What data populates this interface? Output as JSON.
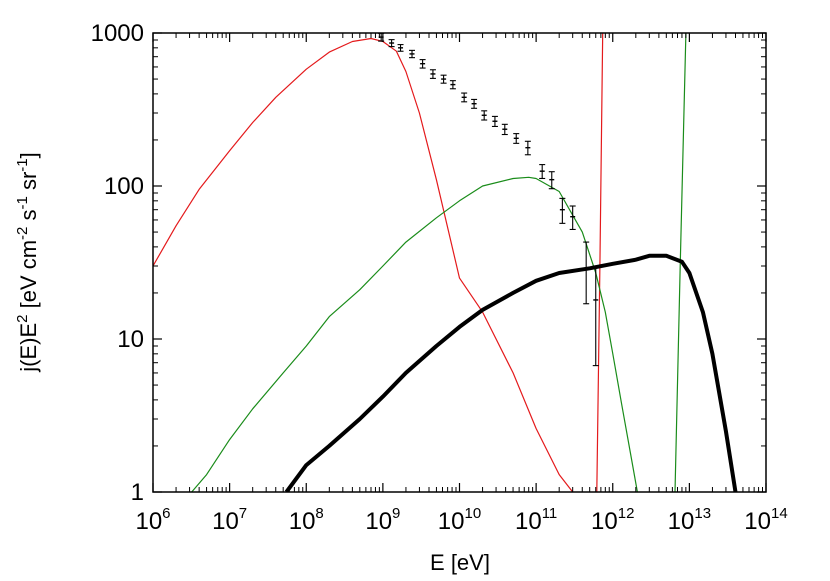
{
  "chart_data": {
    "type": "line",
    "xscale": "log",
    "yscale": "log",
    "xlim": [
      1000000.0,
      100000000000000.0
    ],
    "ylim": [
      1,
      1000
    ],
    "grid": false,
    "legend": "none",
    "xlabel": "E [eV]",
    "ylabel_parts": [
      "j(E)E",
      "2",
      " [eV cm",
      "-2",
      " s",
      "-1",
      " sr",
      "-1",
      "]"
    ],
    "x_ticks": [
      {
        "value": 1000000.0,
        "base": "10",
        "exp": "6"
      },
      {
        "value": 10000000.0,
        "base": "10",
        "exp": "7"
      },
      {
        "value": 100000000.0,
        "base": "10",
        "exp": "8"
      },
      {
        "value": 1000000000.0,
        "base": "10",
        "exp": "9"
      },
      {
        "value": 10000000000.0,
        "base": "10",
        "exp": "10"
      },
      {
        "value": 100000000000.0,
        "base": "10",
        "exp": "11"
      },
      {
        "value": 1000000000000.0,
        "base": "10",
        "exp": "12"
      },
      {
        "value": 10000000000000.0,
        "base": "10",
        "exp": "13"
      },
      {
        "value": 100000000000000.0,
        "base": "10",
        "exp": "14"
      }
    ],
    "y_ticks": [
      {
        "value": 1,
        "label": "1"
      },
      {
        "value": 10,
        "label": "10"
      },
      {
        "value": 100,
        "label": "100"
      },
      {
        "value": 1000,
        "label": "1000"
      }
    ],
    "series": [
      {
        "color": "#e41a1c",
        "width": 1.2,
        "points": [
          [
            1000000.0,
            30
          ],
          [
            2000000.0,
            55
          ],
          [
            4000000.0,
            95
          ],
          [
            10000000.0,
            170
          ],
          [
            20000000.0,
            260
          ],
          [
            40000000.0,
            380
          ],
          [
            100000000.0,
            580
          ],
          [
            200000000.0,
            750
          ],
          [
            400000000.0,
            880
          ],
          [
            700000000.0,
            920
          ],
          [
            1000000000.0,
            880
          ],
          [
            1500000000.0,
            760
          ],
          [
            2000000000.0,
            560
          ],
          [
            3000000000.0,
            300
          ],
          [
            5000000000.0,
            110
          ],
          [
            10000000000.0,
            25
          ],
          [
            20000000000.0,
            15
          ],
          [
            50000000000.0,
            6
          ],
          [
            100000000000.0,
            2.6
          ],
          [
            200000000000.0,
            1.3
          ],
          [
            300000000000.0,
            1
          ]
        ]
      },
      {
        "color": "#e41a1c",
        "width": 1.2,
        "points": [
          [
            620000000000.0,
            1
          ],
          [
            680000000000.0,
            30
          ],
          [
            740000000000.0,
            1000
          ]
        ]
      },
      {
        "color": "#1a8c1a",
        "width": 1.2,
        "points": [
          [
            3200000.0,
            1
          ],
          [
            5000000.0,
            1.3
          ],
          [
            10000000.0,
            2.2
          ],
          [
            20000000.0,
            3.5
          ],
          [
            50000000.0,
            6
          ],
          [
            100000000.0,
            9
          ],
          [
            200000000.0,
            14
          ],
          [
            500000000.0,
            21
          ],
          [
            1000000000.0,
            30
          ],
          [
            2000000000.0,
            43
          ],
          [
            5000000000.0,
            62
          ],
          [
            10000000000.0,
            80
          ],
          [
            20000000000.0,
            100
          ],
          [
            50000000000.0,
            112
          ],
          [
            80000000000.0,
            114
          ],
          [
            100000000000.0,
            112
          ],
          [
            200000000000.0,
            92
          ],
          [
            400000000000.0,
            50
          ],
          [
            600000000000.0,
            27
          ],
          [
            800000000000.0,
            15
          ],
          [
            1000000000000.0,
            8
          ],
          [
            1300000000000.0,
            3.8
          ],
          [
            1700000000000.0,
            1.8
          ],
          [
            2100000000000.0,
            1
          ]
        ]
      },
      {
        "color": "#1a8c1a",
        "width": 1.2,
        "points": [
          [
            6500000000000.0,
            1
          ],
          [
            7600000000000.0,
            30
          ],
          [
            9000000000000.0,
            1000
          ]
        ]
      },
      {
        "color": "#000000",
        "width": 4,
        "points": [
          [
            55000000.0,
            1
          ],
          [
            100000000.0,
            1.5
          ],
          [
            200000000.0,
            2
          ],
          [
            500000000.0,
            3
          ],
          [
            1000000000.0,
            4.2
          ],
          [
            2000000000.0,
            6
          ],
          [
            5000000000.0,
            9
          ],
          [
            10000000000.0,
            12
          ],
          [
            20000000000.0,
            15.5
          ],
          [
            50000000000.0,
            20
          ],
          [
            100000000000.0,
            24
          ],
          [
            200000000000.0,
            27
          ],
          [
            500000000000.0,
            29
          ],
          [
            1000000000000.0,
            31
          ],
          [
            2000000000000.0,
            33
          ],
          [
            3000000000000.0,
            35
          ],
          [
            5000000000000.0,
            35
          ],
          [
            8000000000000.0,
            32
          ],
          [
            10000000000000.0,
            27
          ],
          [
            15000000000000.0,
            15
          ],
          [
            20000000000000.0,
            8
          ],
          [
            30000000000000.0,
            2.5
          ],
          [
            40000000000000.0,
            1
          ]
        ]
      }
    ],
    "data_points": {
      "color": "#000000",
      "points": [
        {
          "x": 950000000.0,
          "y": 940,
          "lo": 885,
          "hi": 995
        },
        {
          "x": 1300000000.0,
          "y": 860,
          "lo": 815,
          "hi": 905
        },
        {
          "x": 1700000000.0,
          "y": 800,
          "lo": 760,
          "hi": 840
        },
        {
          "x": 2400000000.0,
          "y": 730,
          "lo": 690,
          "hi": 770
        },
        {
          "x": 3300000000.0,
          "y": 630,
          "lo": 590,
          "hi": 670
        },
        {
          "x": 4500000000.0,
          "y": 540,
          "lo": 505,
          "hi": 575
        },
        {
          "x": 6200000000.0,
          "y": 500,
          "lo": 470,
          "hi": 530
        },
        {
          "x": 8200000000.0,
          "y": 460,
          "lo": 432,
          "hi": 488
        },
        {
          "x": 11500000000.0,
          "y": 380,
          "lo": 355,
          "hi": 405
        },
        {
          "x": 15500000000.0,
          "y": 345,
          "lo": 322,
          "hi": 368
        },
        {
          "x": 21000000000.0,
          "y": 290,
          "lo": 270,
          "hi": 310
        },
        {
          "x": 29000000000.0,
          "y": 265,
          "lo": 245,
          "hi": 285
        },
        {
          "x": 39000000000.0,
          "y": 235,
          "lo": 217,
          "hi": 253
        },
        {
          "x": 55000000000.0,
          "y": 205,
          "lo": 190,
          "hi": 220
        },
        {
          "x": 78000000000.0,
          "y": 178,
          "lo": 160,
          "hi": 196
        },
        {
          "x": 120000000000.0,
          "y": 125,
          "lo": 112,
          "hi": 138
        },
        {
          "x": 160000000000.0,
          "y": 110,
          "lo": 96,
          "hi": 124
        },
        {
          "x": 220000000000.0,
          "y": 70,
          "lo": 57,
          "hi": 83
        },
        {
          "x": 300000000000.0,
          "y": 63,
          "lo": 52,
          "hi": 74
        },
        {
          "x": 450000000000.0,
          "y": 29,
          "lo": 17,
          "hi": 43
        },
        {
          "x": 600000000000.0,
          "y": 18,
          "lo": 6.7,
          "hi": 30
        }
      ]
    }
  }
}
